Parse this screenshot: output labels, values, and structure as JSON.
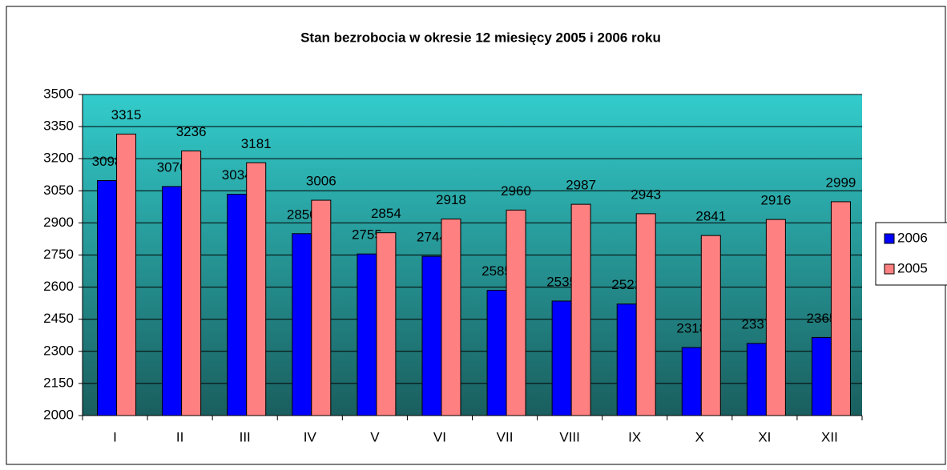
{
  "chart_data": {
    "type": "bar",
    "title": "Stan bezrobocia w okresie 12 miesięcy 2005 i 2006 roku",
    "categories": [
      "I",
      "II",
      "III",
      "IV",
      "V",
      "VI",
      "VII",
      "VIII",
      "IX",
      "X",
      "XI",
      "XII"
    ],
    "series": [
      {
        "name": "2006",
        "color": "#0000ff",
        "values": [
          3098,
          3070,
          3034,
          2850,
          2755,
          2744,
          2585,
          2535,
          2521,
          2318,
          2337,
          2365
        ]
      },
      {
        "name": "2005",
        "color": "#ff8080",
        "values": [
          3315,
          3236,
          3181,
          3006,
          2854,
          2918,
          2960,
          2987,
          2943,
          2841,
          2916,
          2999
        ]
      }
    ],
    "ylim": [
      2000,
      3500
    ],
    "yticks": [
      2000,
      2150,
      2300,
      2450,
      2600,
      2750,
      2900,
      3050,
      3200,
      3350,
      3500
    ],
    "grid": true,
    "legend": "right"
  }
}
